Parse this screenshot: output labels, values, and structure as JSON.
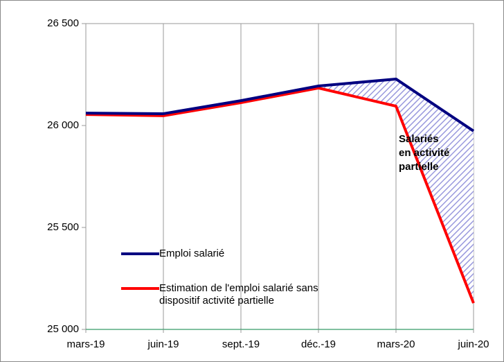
{
  "chart_data": {
    "type": "line",
    "categories": [
      "mars-19",
      "juin-19",
      "sept.-19",
      "déc.-19",
      "mars-20",
      "juin-20"
    ],
    "series": [
      {
        "name": "Emploi salarié",
        "color": "#000080",
        "values": [
          26061,
          26058,
          26122,
          26194,
          26228,
          25973
        ]
      },
      {
        "name": "Estimation de l'emploi salarié sans dispositif activité partielle",
        "color": "#ff0000",
        "values": [
          26054,
          26048,
          26112,
          26184,
          26095,
          25129
        ]
      }
    ],
    "annotation": [
      "Salariés",
      "en activité",
      "partielle"
    ],
    "ylim": [
      25000,
      26500
    ],
    "yticks": [
      {
        "value": 25000,
        "label": "25 000"
      },
      {
        "value": 25500,
        "label": "25 500"
      },
      {
        "value": 26000,
        "label": "26 000"
      },
      {
        "value": 26500,
        "label": "26 500"
      }
    ],
    "grid": true
  }
}
